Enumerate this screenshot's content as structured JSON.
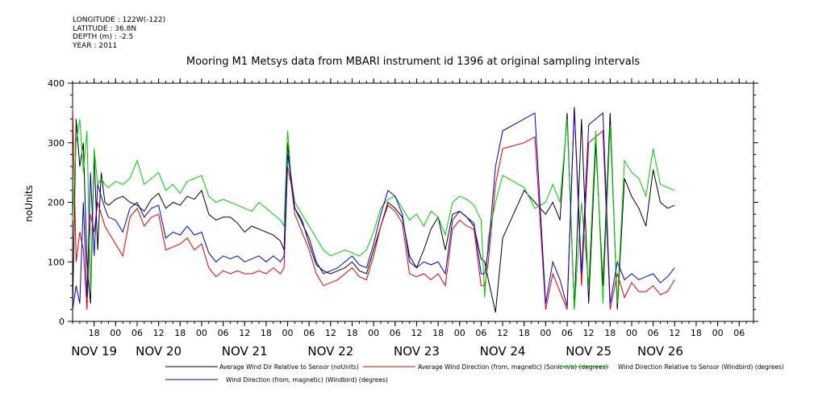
{
  "header": {
    "longitude": "LONGITUDE : 122W(-122)",
    "latitude": "LATITUDE : 36.8N",
    "depth": "DEPTH (m) : -2.5",
    "year": "YEAR : 2011"
  },
  "chart_data": {
    "type": "line",
    "title": "Mooring M1 Metsys data from MBARI instrument id 1396 at original sampling intervals",
    "ylabel": "noUnits",
    "ylim": [
      0,
      400
    ],
    "yticks": [
      0,
      100,
      200,
      300,
      400
    ],
    "xlim": [
      0,
      190
    ],
    "xunit": "hours since NOV 19 12:00",
    "hour_ticks": [
      {
        "x": 6,
        "label": "18"
      },
      {
        "x": 12,
        "label": "00"
      },
      {
        "x": 18,
        "label": "06"
      },
      {
        "x": 24,
        "label": "12"
      },
      {
        "x": 30,
        "label": "18"
      },
      {
        "x": 36,
        "label": "00"
      },
      {
        "x": 42,
        "label": "06"
      },
      {
        "x": 48,
        "label": "12"
      },
      {
        "x": 54,
        "label": "18"
      },
      {
        "x": 60,
        "label": "00"
      },
      {
        "x": 66,
        "label": "06"
      },
      {
        "x": 72,
        "label": "12"
      },
      {
        "x": 78,
        "label": "18"
      },
      {
        "x": 84,
        "label": "00"
      },
      {
        "x": 90,
        "label": "06"
      },
      {
        "x": 96,
        "label": "12"
      },
      {
        "x": 102,
        "label": "18"
      },
      {
        "x": 108,
        "label": "00"
      },
      {
        "x": 114,
        "label": "06"
      },
      {
        "x": 120,
        "label": "12"
      },
      {
        "x": 126,
        "label": "18"
      },
      {
        "x": 132,
        "label": "00"
      },
      {
        "x": 138,
        "label": "06"
      },
      {
        "x": 144,
        "label": "12"
      },
      {
        "x": 150,
        "label": "18"
      },
      {
        "x": 156,
        "label": "00"
      },
      {
        "x": 162,
        "label": "06"
      },
      {
        "x": 168,
        "label": "12"
      },
      {
        "x": 174,
        "label": "18"
      },
      {
        "x": 180,
        "label": "00"
      },
      {
        "x": 186,
        "label": "06"
      },
      {
        "x": 192,
        "label": "12"
      }
    ],
    "day_labels": [
      {
        "x": 6,
        "label": "NOV 19"
      },
      {
        "x": 24,
        "label": "NOV 20"
      },
      {
        "x": 48,
        "label": "NOV 21"
      },
      {
        "x": 72,
        "label": "NOV 22"
      },
      {
        "x": 96,
        "label": "NOV 23"
      },
      {
        "x": 120,
        "label": "NOV 24"
      },
      {
        "x": 144,
        "label": "NOV 25"
      },
      {
        "x": 164,
        "label": "NOV 26"
      }
    ],
    "series": [
      {
        "name": "Average Wind Dir Relative to Sensor (noUnits)",
        "color": "#000000",
        "x": [
          0,
          1,
          2,
          3,
          4,
          5,
          6,
          7,
          8,
          9,
          10,
          12,
          14,
          16,
          18,
          20,
          22,
          24,
          26,
          28,
          30,
          32,
          34,
          36,
          38,
          40,
          42,
          44,
          46,
          48,
          50,
          52,
          54,
          56,
          58,
          59,
          60,
          61,
          62,
          64,
          66,
          68,
          70,
          72,
          74,
          76,
          78,
          80,
          82,
          84,
          86,
          88,
          90,
          92,
          94,
          96,
          98,
          100,
          102,
          104,
          106,
          108,
          110,
          112,
          114,
          115,
          116,
          118,
          120,
          126,
          129,
          132,
          134,
          136,
          138,
          140,
          142,
          144,
          146,
          148,
          150,
          152,
          154,
          156,
          158,
          160,
          162,
          164,
          166,
          168
        ],
        "values": [
          20,
          340,
          260,
          300,
          100,
          30,
          280,
          120,
          250,
          200,
          195,
          205,
          210,
          200,
          195,
          185,
          205,
          215,
          190,
          200,
          195,
          210,
          205,
          220,
          180,
          170,
          175,
          175,
          165,
          150,
          160,
          155,
          150,
          145,
          135,
          120,
          300,
          230,
          190,
          170,
          130,
          95,
          85,
          80,
          85,
          90,
          100,
          85,
          80,
          120,
          160,
          200,
          190,
          175,
          110,
          90,
          120,
          155,
          175,
          120,
          180,
          185,
          175,
          160,
          105,
          100,
          70,
          15,
          140,
          220,
          200,
          180,
          200,
          170,
          350,
          20,
          340,
          30,
          300,
          60,
          350,
          20,
          240,
          210,
          190,
          160,
          255,
          200,
          190,
          195
        ]
      },
      {
        "name": "Average Wind Direction (from, magnetic) (Sonic-n/a) (degrees)",
        "color": "#dd0000",
        "x": [
          0,
          1,
          2,
          3,
          4,
          5,
          6,
          7,
          8,
          9,
          10,
          12,
          14,
          16,
          18,
          20,
          22,
          24,
          26,
          28,
          30,
          32,
          34,
          36,
          38,
          40,
          42,
          44,
          46,
          48,
          50,
          52,
          54,
          56,
          58,
          59,
          60,
          61,
          62,
          64,
          66,
          68,
          70,
          72,
          74,
          76,
          78,
          80,
          82,
          84,
          86,
          88,
          90,
          92,
          94,
          96,
          98,
          100,
          102,
          104,
          106,
          108,
          110,
          112,
          114,
          115,
          116,
          118,
          120,
          126,
          129,
          132,
          134,
          136,
          138,
          140,
          142,
          144,
          146,
          148,
          150,
          152,
          154,
          156,
          158,
          160,
          162,
          164,
          166,
          168
        ],
        "values": [
          360,
          100,
          150,
          120,
          20,
          180,
          150,
          200,
          180,
          160,
          150,
          130,
          110,
          175,
          190,
          160,
          175,
          180,
          120,
          125,
          130,
          140,
          120,
          130,
          90,
          75,
          85,
          80,
          85,
          80,
          80,
          85,
          80,
          90,
          80,
          90,
          260,
          230,
          180,
          150,
          120,
          80,
          60,
          65,
          70,
          80,
          90,
          75,
          70,
          110,
          160,
          195,
          185,
          165,
          80,
          75,
          80,
          70,
          80,
          60,
          155,
          170,
          160,
          155,
          60,
          60,
          100,
          230,
          290,
          300,
          310,
          20,
          80,
          50,
          20,
          360,
          60,
          300,
          310,
          320,
          20,
          80,
          40,
          65,
          50,
          50,
          60,
          45,
          50,
          70
        ]
      },
      {
        "name": "Wind Direction Relative to Sensor (Windbird) (degrees)",
        "color": "#00cc00",
        "x": [
          0,
          1,
          2,
          3,
          4,
          5,
          6,
          7,
          8,
          9,
          10,
          12,
          14,
          16,
          18,
          20,
          22,
          24,
          26,
          28,
          30,
          32,
          34,
          36,
          38,
          40,
          42,
          44,
          46,
          48,
          50,
          52,
          54,
          56,
          58,
          59,
          60,
          61,
          62,
          64,
          66,
          68,
          70,
          72,
          74,
          76,
          78,
          80,
          82,
          84,
          86,
          88,
          90,
          92,
          94,
          96,
          98,
          100,
          102,
          104,
          106,
          108,
          110,
          112,
          114,
          115,
          116,
          118,
          120,
          126,
          129,
          132,
          134,
          136,
          138,
          140,
          142,
          144,
          146,
          148,
          150,
          152,
          154,
          156,
          158,
          160,
          162,
          164,
          166,
          168
        ],
        "values": [
          170,
          300,
          340,
          250,
          320,
          50,
          290,
          230,
          240,
          230,
          225,
          235,
          230,
          240,
          270,
          230,
          240,
          250,
          220,
          230,
          215,
          235,
          240,
          245,
          210,
          200,
          205,
          200,
          195,
          190,
          185,
          200,
          190,
          180,
          170,
          160,
          320,
          240,
          200,
          180,
          160,
          140,
          120,
          110,
          115,
          120,
          115,
          110,
          120,
          150,
          190,
          205,
          210,
          190,
          170,
          180,
          160,
          185,
          175,
          145,
          200,
          210,
          205,
          195,
          170,
          40,
          140,
          200,
          245,
          225,
          190,
          200,
          230,
          200,
          340,
          20,
          200,
          60,
          320,
          30,
          330,
          30,
          270,
          250,
          240,
          210,
          290,
          230,
          225,
          220
        ]
      },
      {
        "name": "Wind Direction (from, magnetic) (Windbird) (degrees)",
        "color": "#0000cc",
        "x": [
          0,
          1,
          2,
          3,
          4,
          5,
          6,
          7,
          8,
          9,
          10,
          12,
          14,
          16,
          18,
          20,
          22,
          24,
          26,
          28,
          30,
          32,
          34,
          36,
          38,
          40,
          42,
          44,
          46,
          48,
          50,
          52,
          54,
          56,
          58,
          59,
          60,
          61,
          62,
          64,
          66,
          68,
          70,
          72,
          74,
          76,
          78,
          80,
          82,
          84,
          86,
          88,
          90,
          92,
          94,
          96,
          98,
          100,
          102,
          104,
          106,
          108,
          110,
          112,
          114,
          115,
          116,
          118,
          120,
          126,
          129,
          132,
          134,
          136,
          138,
          140,
          142,
          144,
          146,
          148,
          150,
          152,
          154,
          156,
          158,
          160,
          162,
          164,
          166,
          168
        ],
        "values": [
          20,
          60,
          30,
          200,
          40,
          250,
          110,
          230,
          210,
          190,
          175,
          170,
          150,
          190,
          200,
          175,
          190,
          195,
          140,
          150,
          145,
          160,
          145,
          150,
          115,
          100,
          110,
          105,
          110,
          100,
          105,
          110,
          100,
          110,
          100,
          110,
          280,
          240,
          190,
          165,
          140,
          100,
          80,
          85,
          90,
          100,
          110,
          95,
          90,
          130,
          180,
          220,
          210,
          180,
          100,
          90,
          100,
          95,
          100,
          80,
          170,
          185,
          175,
          165,
          80,
          80,
          120,
          260,
          320,
          340,
          350,
          30,
          100,
          70,
          25,
          360,
          80,
          330,
          340,
          350,
          30,
          100,
          70,
          80,
          70,
          75,
          80,
          65,
          75,
          90
        ]
      }
    ]
  }
}
